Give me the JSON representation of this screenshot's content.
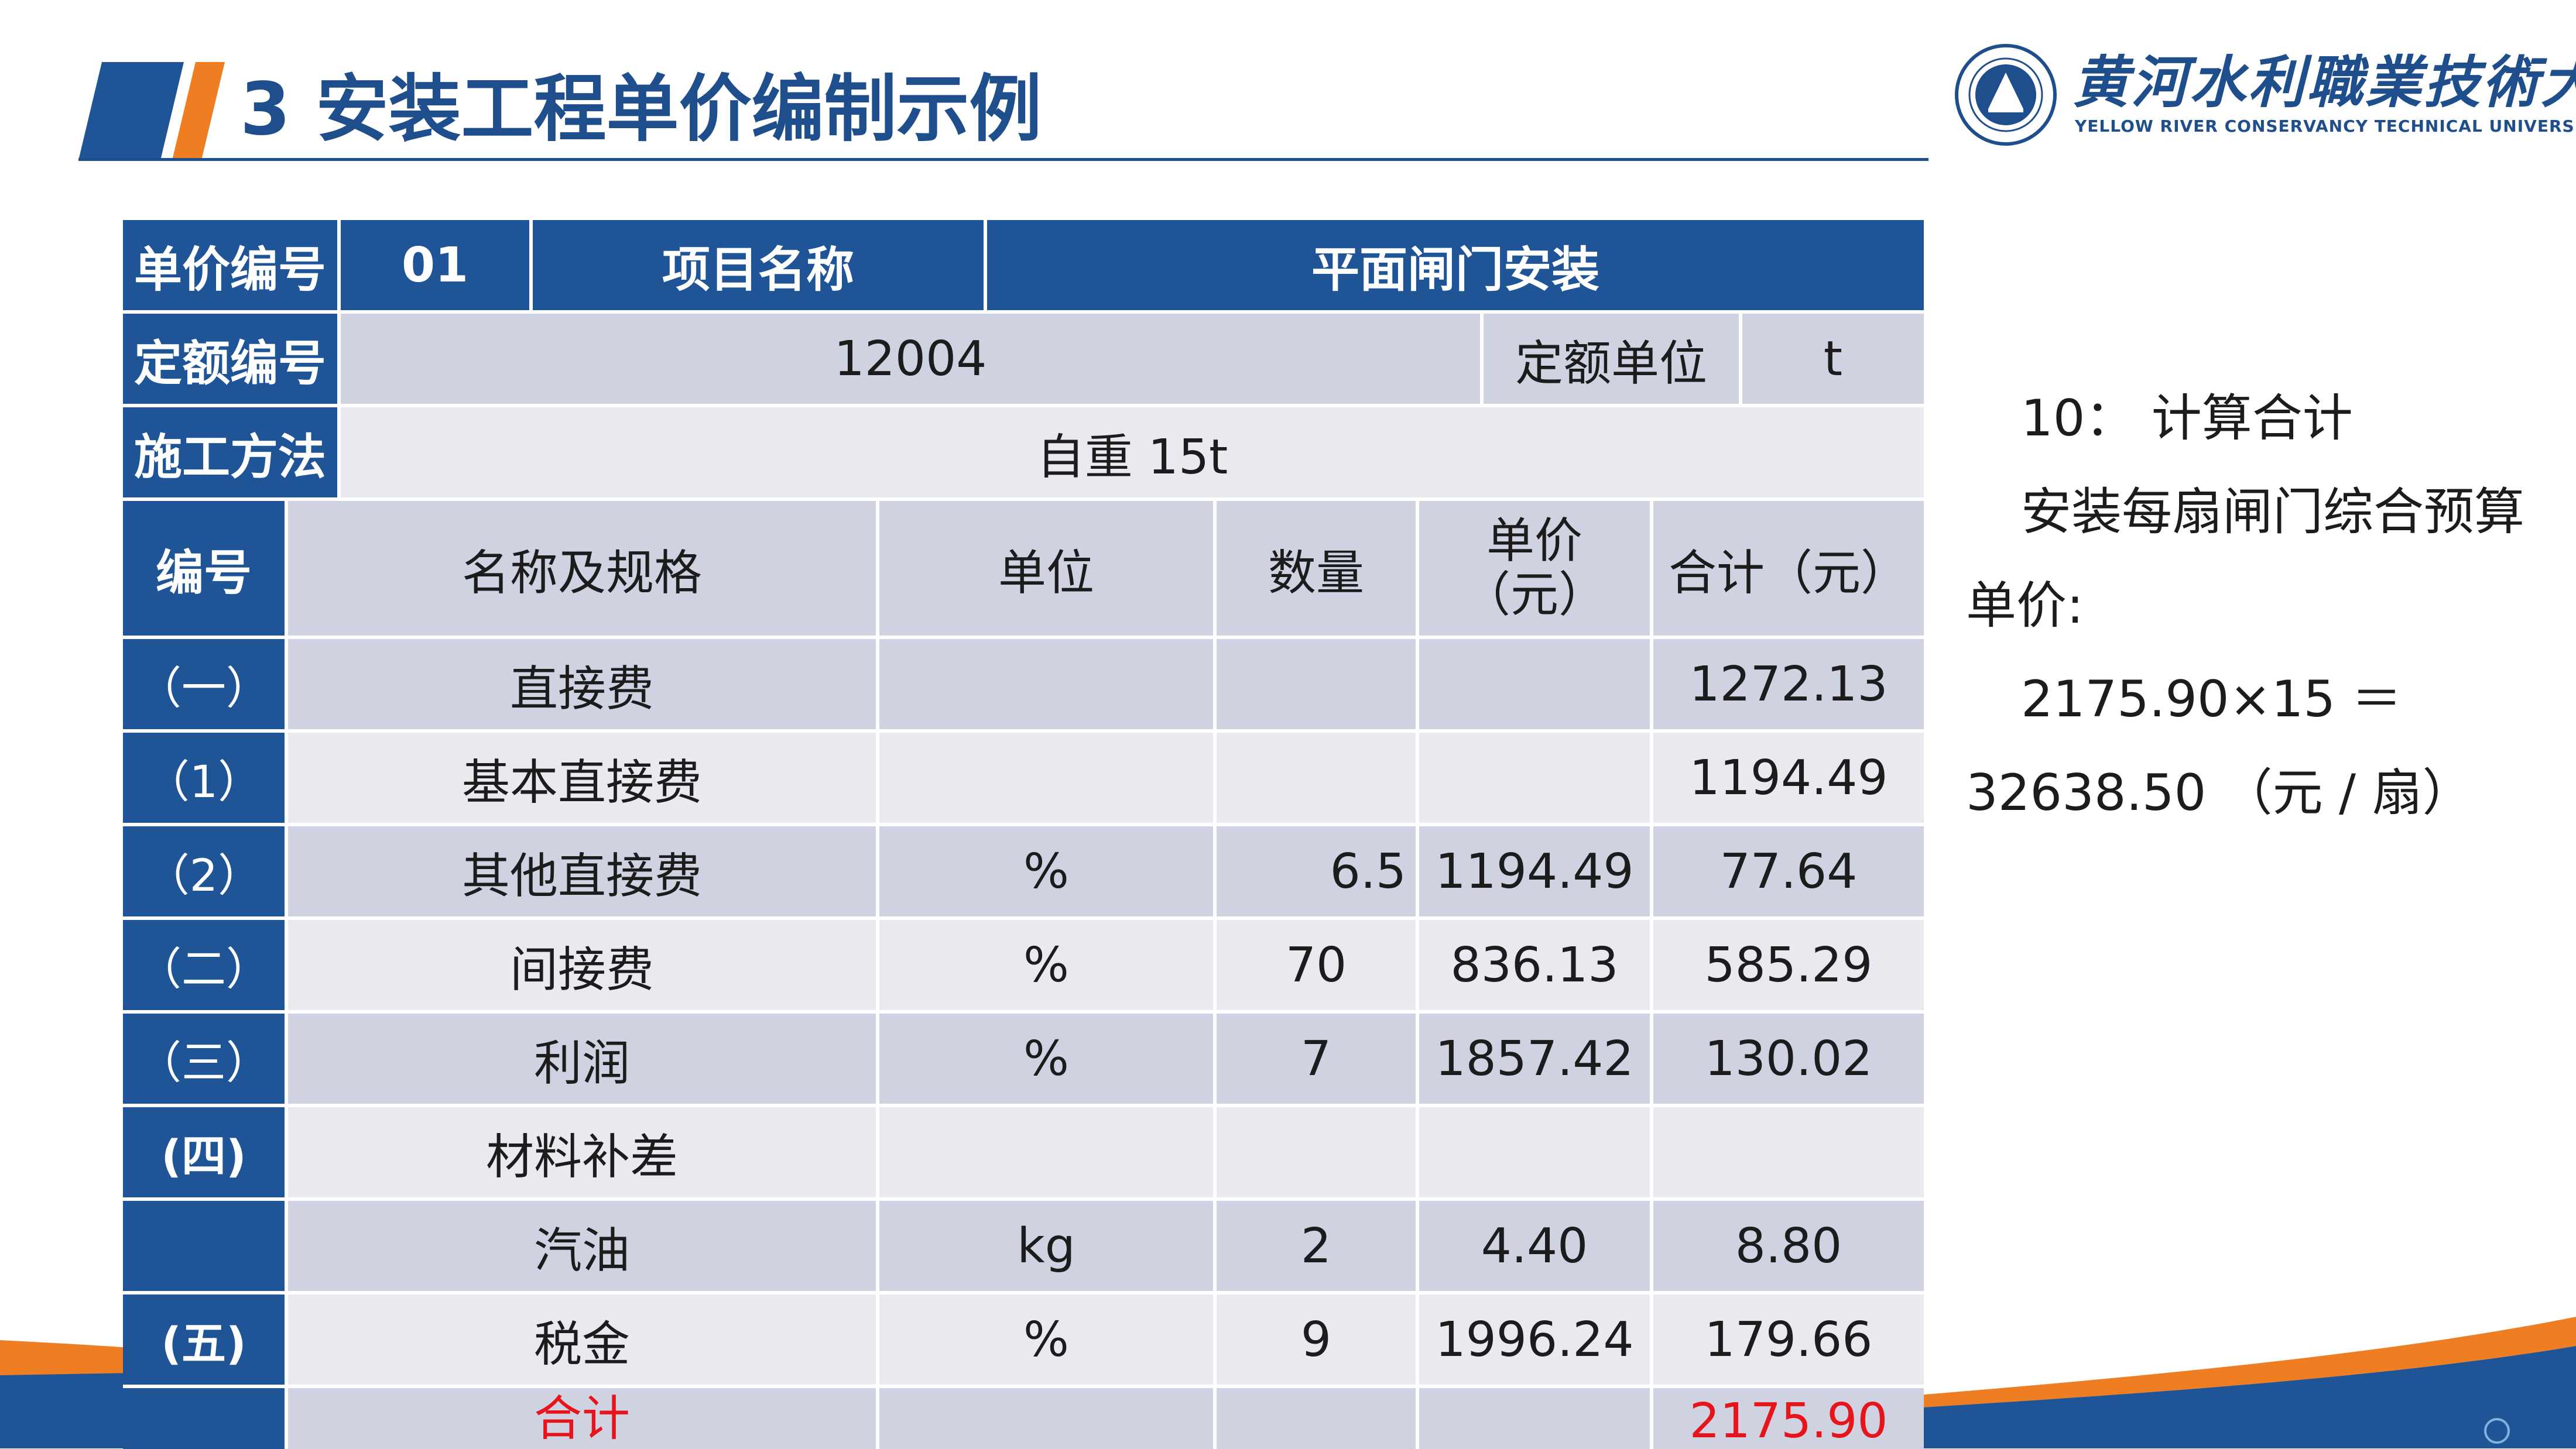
{
  "header": {
    "title": "3 安装工程单价编制示例",
    "university_cn": "黄河水利職業技術大學",
    "university_en": "YELLOW RIVER CONSERVANCY TECHNICAL UNIVERSITY"
  },
  "colors": {
    "brand_blue": "#1f5597",
    "title_blue": "#1f4e8c",
    "accent_orange": "#ef7d22",
    "cell_light": "#cfd2e0",
    "cell_pale": "#e9eaf0",
    "total_red": "#e8141b"
  },
  "info": {
    "price_no_label": "单价编号",
    "price_no_value": "01",
    "project_name_label": "项目名称",
    "project_name_value": "平面闸门安装",
    "quota_no_label": "定额编号",
    "quota_no_value": "12004",
    "quota_unit_label": "定额单位",
    "quota_unit_value": "t",
    "method_label": "施工方法",
    "method_value": "自重 15t"
  },
  "table": {
    "headers": {
      "no": "编号",
      "name": "名称及规格",
      "unit": "单位",
      "qty": "数量",
      "price_line1": "单价",
      "price_line2": "（元）",
      "total": "合计（元）"
    },
    "rows": [
      {
        "no": "（一）",
        "name": "直接费",
        "unit": "",
        "qty": "",
        "price": "",
        "total": "1272.13"
      },
      {
        "no": "（1）",
        "name": "基本直接费",
        "unit": "",
        "qty": "",
        "price": "",
        "total": "1194.49"
      },
      {
        "no": "（2）",
        "name": "其他直接费",
        "unit": "%",
        "qty": "6.5",
        "price": "1194.49",
        "total": "77.64"
      },
      {
        "no": "（二）",
        "name": "间接费",
        "unit": "%",
        "qty": "70",
        "price": "836.13",
        "total": "585.29"
      },
      {
        "no": "（三）",
        "name": "利润",
        "unit": "%",
        "qty": "7",
        "price": "1857.42",
        "total": "130.02"
      },
      {
        "no": "(四)",
        "name": "材料补差",
        "unit": "",
        "qty": "",
        "price": "",
        "total": ""
      },
      {
        "no": "",
        "name": "汽油",
        "unit": "kg",
        "qty": "2",
        "price": "4.40",
        "total": "8.80"
      },
      {
        "no": "(五)",
        "name": "税金",
        "unit": "%",
        "qty": "9",
        "price": "1996.24",
        "total": "179.66"
      },
      {
        "no": "",
        "name": "合计",
        "unit": "",
        "qty": "",
        "price": "",
        "total": "2175.90"
      }
    ]
  },
  "notes": {
    "line1": "10： 计算合计",
    "line2": "安装每扇闸门综合预算",
    "line3": "单价:",
    "line4": "2175.90×15 ＝",
    "line5": "32638.50 （元 / 扇）"
  }
}
